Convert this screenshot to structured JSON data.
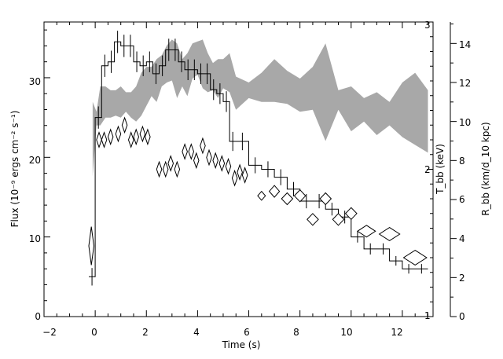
{
  "chart_data": {
    "type": "line",
    "xlabel": "Time (s)",
    "ylabel_left": "Flux (10⁻⁹ ergs cm⁻² s⁻¹)",
    "ylabel_right_inner": "T_bb (keV)",
    "ylabel_right_outer": "R_bb (km/d_10 kpc)",
    "xlim": [
      -2,
      13.2
    ],
    "ylim_left": [
      0,
      37
    ],
    "ylim_right_inner": [
      1,
      3
    ],
    "ylim_right_outer": [
      0,
      15.1
    ],
    "x_ticks": [
      "−2",
      "0",
      "2",
      "4",
      "6",
      "8",
      "10",
      "12"
    ],
    "y_ticks_left": [
      "0",
      "10",
      "20",
      "30"
    ],
    "y_ticks_right_inner": [
      "1",
      "2",
      "3"
    ],
    "y_ticks_right_outer": [
      "0",
      "2",
      "4",
      "6",
      "8",
      "10",
      "12",
      "14"
    ],
    "series": [
      {
        "style": "histogram_with_error_bars",
        "axis": "left",
        "bins": [
          [
            -0.25,
            0.0,
            5.0
          ],
          [
            0.0,
            0.25,
            25.0
          ],
          [
            0.25,
            0.5,
            31.5
          ],
          [
            0.5,
            0.75,
            32.0
          ],
          [
            0.75,
            1.0,
            34.5
          ],
          [
            1.0,
            1.25,
            34.0
          ],
          [
            1.25,
            1.5,
            34.0
          ],
          [
            1.5,
            1.75,
            32.0
          ],
          [
            1.75,
            2.0,
            31.5
          ],
          [
            2.0,
            2.25,
            32.0
          ],
          [
            2.25,
            2.5,
            30.5
          ],
          [
            2.5,
            2.75,
            31.5
          ],
          [
            2.75,
            3.0,
            33.5
          ],
          [
            3.0,
            3.25,
            33.5
          ],
          [
            3.25,
            3.5,
            32.0
          ],
          [
            3.5,
            3.75,
            31.0
          ],
          [
            3.75,
            4.0,
            31.0
          ],
          [
            4.0,
            4.25,
            30.5
          ],
          [
            4.25,
            4.5,
            30.5
          ],
          [
            4.5,
            4.75,
            28.5
          ],
          [
            4.75,
            5.0,
            28.0
          ],
          [
            5.0,
            5.25,
            27.0
          ],
          [
            5.25,
            5.5,
            22.0
          ],
          [
            5.5,
            6.0,
            22.0
          ],
          [
            6.0,
            6.5,
            19.0
          ],
          [
            6.5,
            7.0,
            18.5
          ],
          [
            7.0,
            7.5,
            17.5
          ],
          [
            7.5,
            8.0,
            16.0
          ],
          [
            8.0,
            8.5,
            14.5
          ],
          [
            8.5,
            9.0,
            14.5
          ],
          [
            9.0,
            9.5,
            13.5
          ],
          [
            9.5,
            10.0,
            12.5
          ],
          [
            10.0,
            10.5,
            10.0
          ],
          [
            10.5,
            11.0,
            8.5
          ],
          [
            11.0,
            11.5,
            8.5
          ],
          [
            11.5,
            12.0,
            7.0
          ],
          [
            12.0,
            12.5,
            6.0
          ],
          [
            12.5,
            13.0,
            6.0
          ]
        ],
        "errors": [
          1.1,
          1.4,
          1.4,
          1.4,
          1.4,
          1.4,
          1.4,
          1.3,
          1.3,
          1.3,
          1.3,
          1.3,
          1.4,
          1.4,
          1.3,
          1.3,
          1.3,
          1.3,
          1.3,
          1.3,
          1.3,
          1.3,
          1.2,
          1.1,
          1.0,
          1.0,
          1.0,
          0.9,
          0.9,
          0.9,
          0.8,
          0.8,
          0.7,
          0.7,
          0.7,
          0.6,
          0.6,
          0.6
        ]
      },
      {
        "style": "diamonds",
        "axis": "right_inner",
        "points": [
          [
            -0.15,
            1.48,
            0.1,
            0.13
          ],
          [
            0.15,
            2.2,
            0.1,
            0.05
          ],
          [
            0.35,
            2.2,
            0.1,
            0.05
          ],
          [
            0.6,
            2.22,
            0.1,
            0.05
          ],
          [
            0.9,
            2.24,
            0.1,
            0.05
          ],
          [
            1.15,
            2.3,
            0.1,
            0.05
          ],
          [
            1.4,
            2.2,
            0.1,
            0.05
          ],
          [
            1.6,
            2.22,
            0.1,
            0.05
          ],
          [
            1.85,
            2.24,
            0.1,
            0.05
          ],
          [
            2.05,
            2.22,
            0.1,
            0.05
          ],
          [
            2.5,
            2.0,
            0.1,
            0.05
          ],
          [
            2.75,
            2.0,
            0.1,
            0.05
          ],
          [
            2.95,
            2.04,
            0.1,
            0.05
          ],
          [
            3.2,
            2.0,
            0.1,
            0.05
          ],
          [
            3.5,
            2.12,
            0.1,
            0.05
          ],
          [
            3.75,
            2.12,
            0.1,
            0.05
          ],
          [
            3.95,
            2.06,
            0.1,
            0.05
          ],
          [
            4.2,
            2.16,
            0.1,
            0.05
          ],
          [
            4.45,
            2.08,
            0.1,
            0.05
          ],
          [
            4.7,
            2.06,
            0.1,
            0.05
          ],
          [
            4.95,
            2.04,
            0.1,
            0.05
          ],
          [
            5.2,
            2.02,
            0.1,
            0.05
          ],
          [
            5.45,
            1.94,
            0.1,
            0.05
          ],
          [
            5.65,
            1.98,
            0.1,
            0.05
          ],
          [
            5.85,
            1.96,
            0.1,
            0.05
          ],
          [
            6.5,
            1.82,
            0.15,
            0.03
          ],
          [
            7.0,
            1.85,
            0.2,
            0.04
          ],
          [
            7.5,
            1.8,
            0.22,
            0.04
          ],
          [
            8.0,
            1.82,
            0.22,
            0.04
          ],
          [
            8.5,
            1.66,
            0.22,
            0.04
          ],
          [
            9.0,
            1.8,
            0.22,
            0.04
          ],
          [
            9.5,
            1.66,
            0.22,
            0.04
          ],
          [
            10.0,
            1.7,
            0.22,
            0.04
          ],
          [
            10.6,
            1.58,
            0.35,
            0.04
          ],
          [
            11.5,
            1.56,
            0.4,
            0.045
          ],
          [
            12.5,
            1.4,
            0.45,
            0.05
          ]
        ]
      },
      {
        "style": "shaded_band",
        "axis": "right_outer",
        "x": [
          -0.1,
          0.05,
          0.2,
          0.4,
          0.6,
          0.8,
          1.0,
          1.2,
          1.4,
          1.6,
          1.8,
          2.0,
          2.2,
          2.4,
          2.6,
          2.8,
          3.0,
          3.2,
          3.4,
          3.6,
          3.8,
          4.0,
          4.2,
          4.4,
          4.6,
          4.8,
          5.0,
          5.25,
          5.5,
          6.0,
          6.5,
          7.0,
          7.5,
          8.0,
          8.5,
          9.0,
          9.5,
          10.0,
          10.5,
          11.0,
          11.5,
          12.0,
          12.5,
          13.0
        ],
        "upper": [
          11.0,
          10.5,
          11.8,
          11.8,
          11.6,
          11.6,
          11.8,
          11.5,
          11.5,
          11.8,
          12.5,
          12.8,
          12.8,
          13.2,
          13.4,
          13.9,
          14.2,
          14.0,
          13.2,
          13.5,
          14.0,
          14.1,
          14.2,
          13.5,
          13.0,
          13.2,
          13.2,
          13.5,
          12.3,
          12.0,
          12.5,
          13.2,
          12.6,
          12.2,
          12.8,
          14.0,
          11.6,
          11.8,
          11.2,
          11.5,
          11.0,
          12.0,
          12.5,
          11.6
        ],
        "lower": [
          7.2,
          9.8,
          9.8,
          10.2,
          10.2,
          10.3,
          10.2,
          10.5,
          10.2,
          10.0,
          10.3,
          10.8,
          11.3,
          11.0,
          11.8,
          12.0,
          12.1,
          11.2,
          11.8,
          11.3,
          12.2,
          12.4,
          11.7,
          11.5,
          11.6,
          11.2,
          11.7,
          11.5,
          10.6,
          11.2,
          11.0,
          11.0,
          10.9,
          10.5,
          10.6,
          9.0,
          10.6,
          9.5,
          10.0,
          9.3,
          9.8,
          9.2,
          8.8,
          8.4
        ]
      }
    ]
  }
}
